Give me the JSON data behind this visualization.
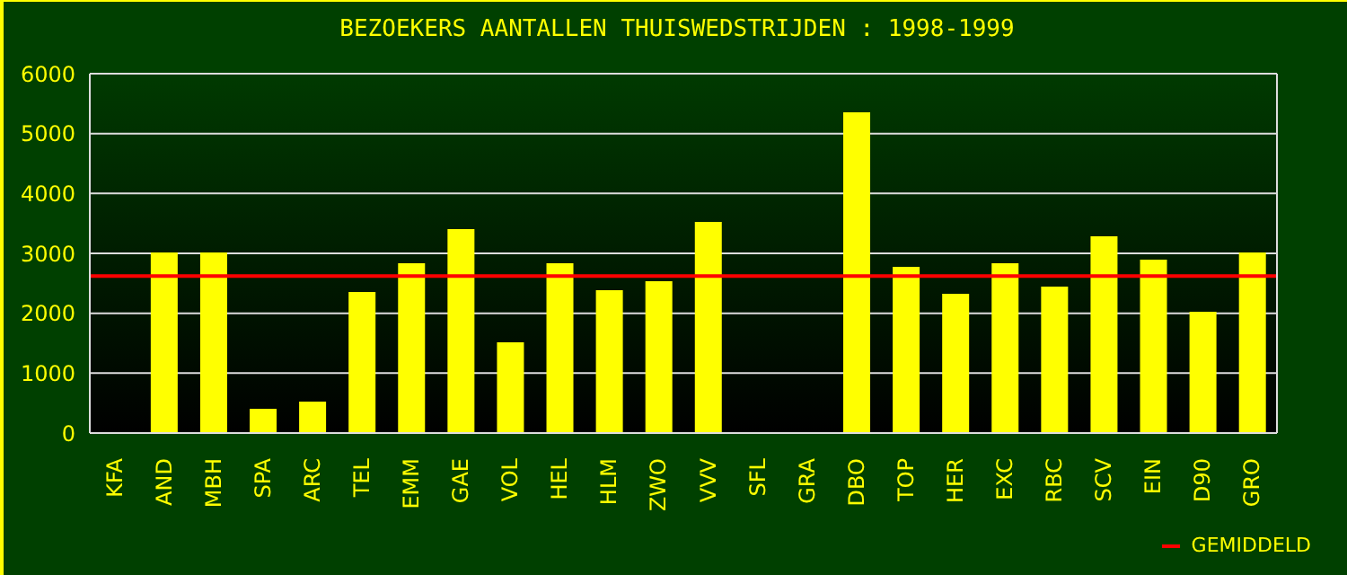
{
  "chart_data": {
    "type": "bar",
    "title": "BEZOEKERS AANTALLEN THUISWEDSTRIJDEN : 1998-1999",
    "categories": [
      "KFA",
      "AND",
      "MBH",
      "SPA",
      "ARC",
      "TEL",
      "EMM",
      "GAE",
      "VOL",
      "HEL",
      "HLM",
      "ZWO",
      "VVV",
      "SFL",
      "GRA",
      "DBO",
      "TOP",
      "HER",
      "EXC",
      "RBC",
      "SCV",
      "EIN",
      "D90",
      "GRO"
    ],
    "values": [
      null,
      3000,
      3000,
      390,
      510,
      2340,
      2820,
      3390,
      1500,
      2820,
      2370,
      2520,
      3510,
      null,
      null,
      5340,
      2760,
      2310,
      2820,
      2430,
      3270,
      2880,
      2010,
      3000
    ],
    "color": "#ffff00",
    "ylim": [
      0,
      6000
    ],
    "yticks": [
      0,
      1000,
      2000,
      3000,
      4000,
      5000,
      6000
    ],
    "grid": "y",
    "ref_lines": [
      {
        "axis": "y",
        "value": 2620,
        "label": "GEMIDDELD",
        "color": "#ff0000"
      }
    ],
    "legend": "bottom right"
  }
}
